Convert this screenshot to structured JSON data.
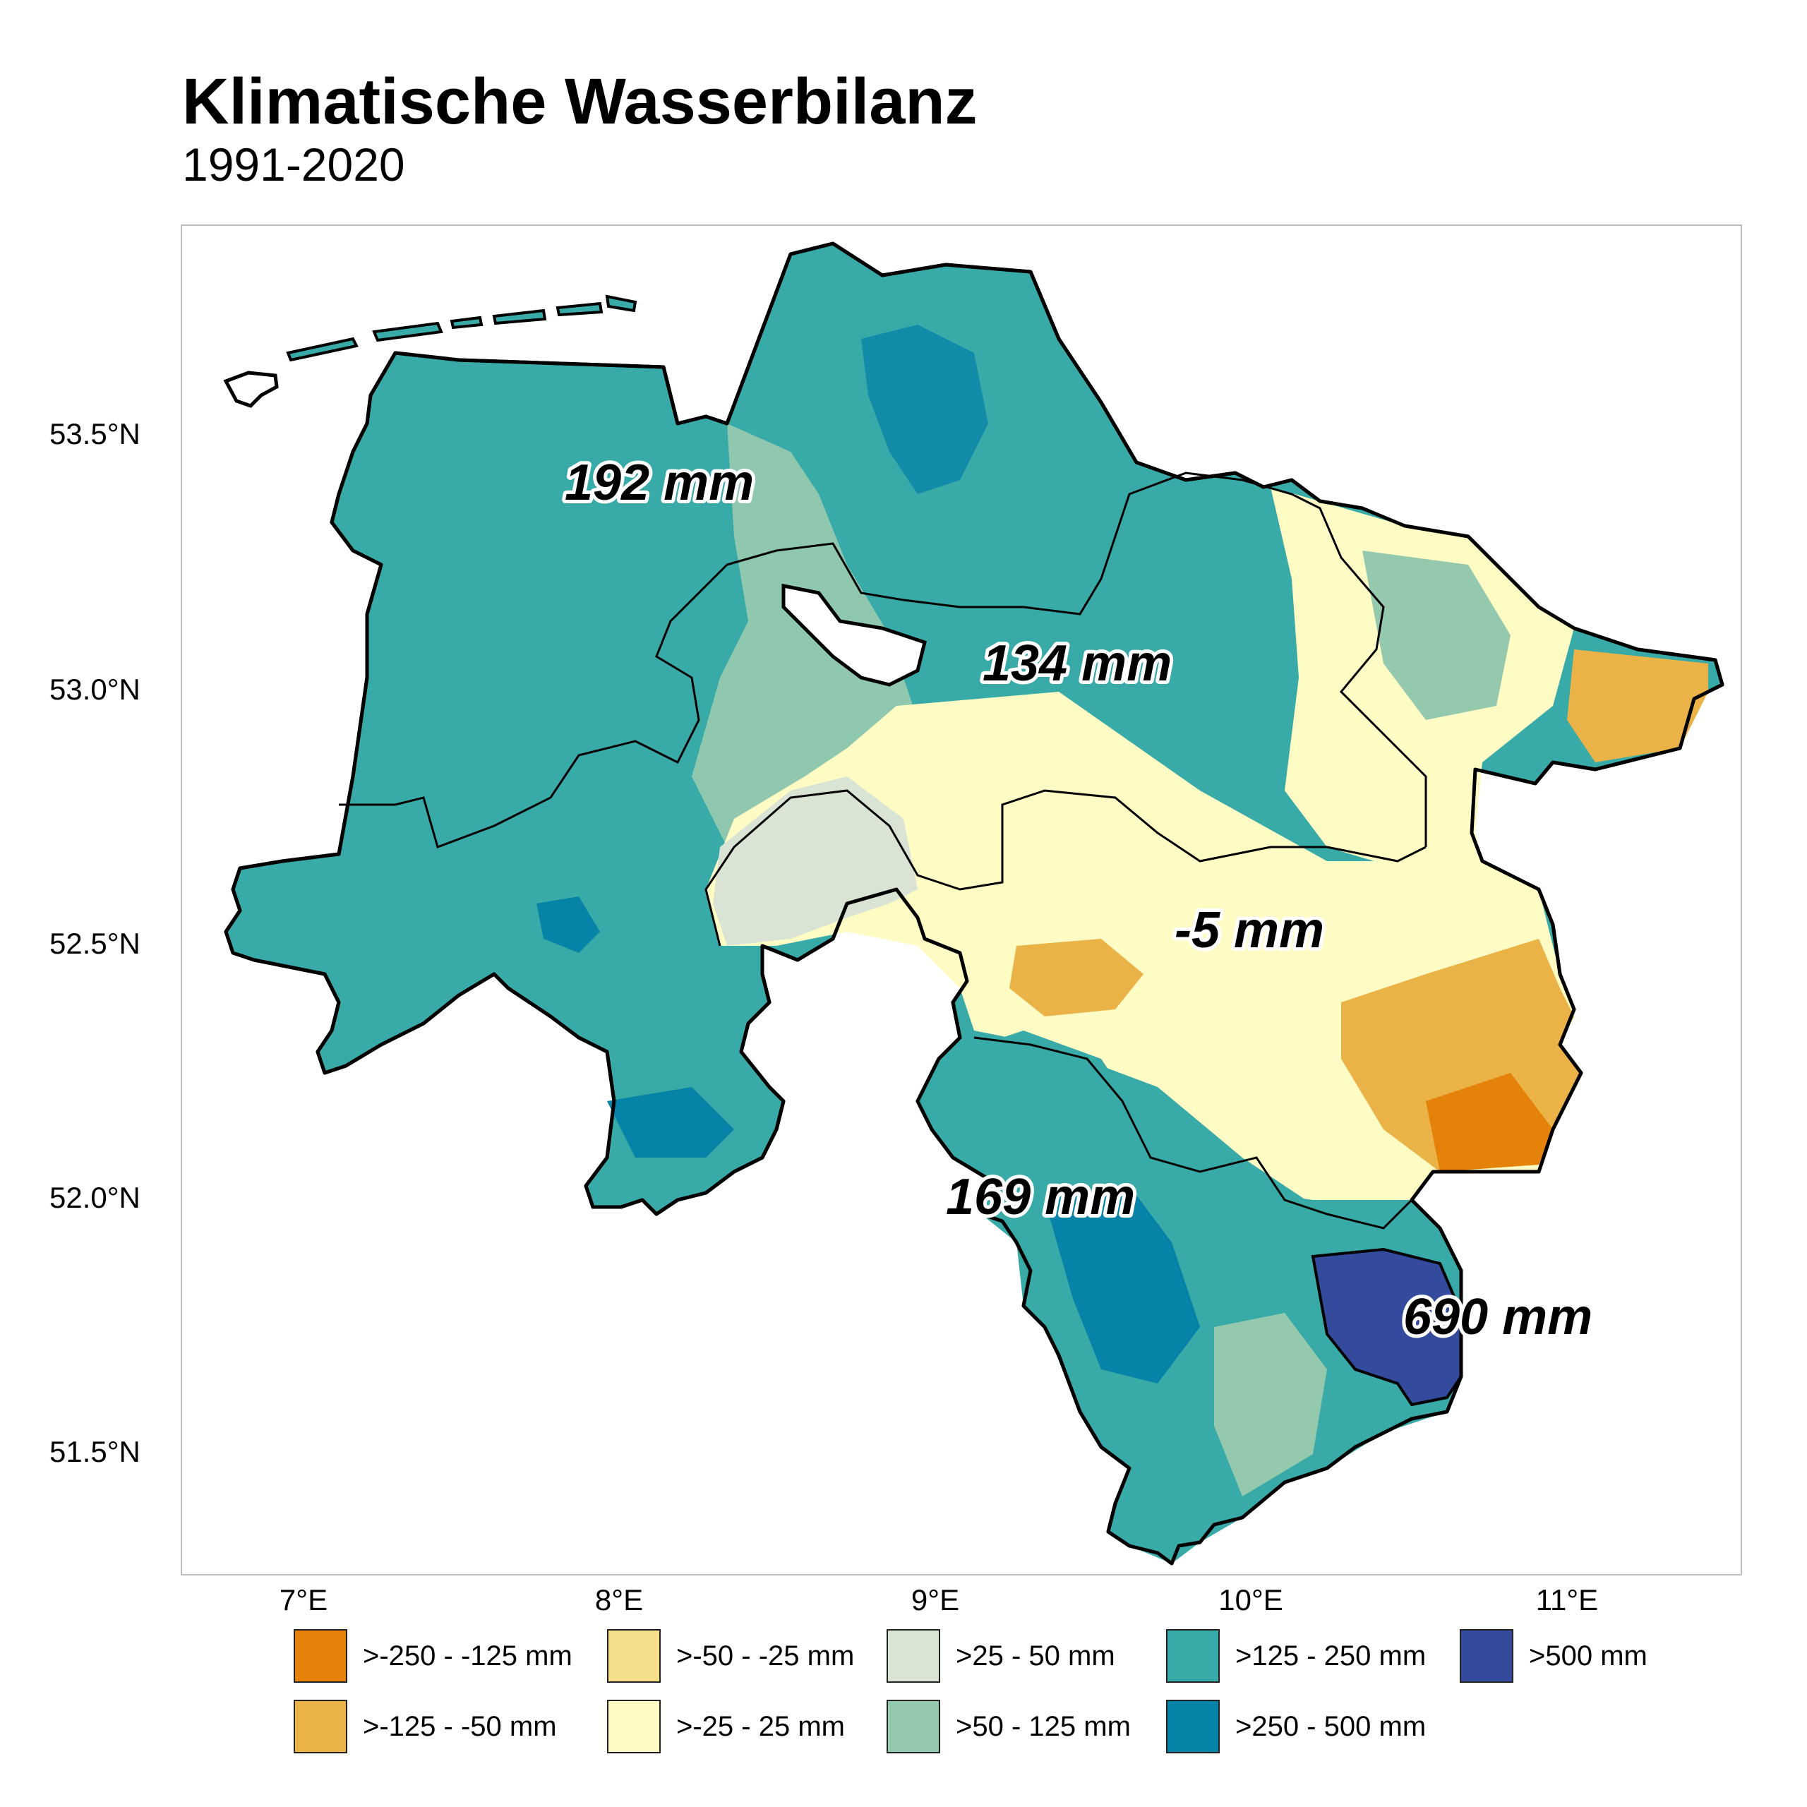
{
  "title": "Klimatische Wasserbilanz",
  "subtitle": "1991-2020",
  "map": {
    "lat_labels": [
      "53.5°N",
      "53.0°N",
      "52.5°N",
      "52.0°N",
      "51.5°N"
    ],
    "lon_labels": [
      "7°E",
      "8°E",
      "9°E",
      "10°E",
      "11°E"
    ],
    "region_values": [
      "192 mm",
      "134 mm",
      "-5 mm",
      "169 mm",
      "690 mm"
    ]
  },
  "legend": [
    {
      "label": ">-250 - -125 mm",
      "color": "#e5820a"
    },
    {
      "label": ">-125 - -50 mm",
      "color": "#ebb347"
    },
    {
      "label": ">-50 - -25 mm",
      "color": "#f4de8c"
    },
    {
      "label": ">-25 - 25 mm",
      "color": "#fefbc4"
    },
    {
      "label": ">25 - 50 mm",
      "color": "#d9e4d5"
    },
    {
      "label": ">50 - 125 mm",
      "color": "#94c9ae"
    },
    {
      "label": ">125 - 250 mm",
      "color": "#38aaa8"
    },
    {
      "label": ">250 - 500 mm",
      "color": "#0783a8"
    },
    {
      "label": ">500 mm",
      "color": "#334a9d"
    }
  ]
}
